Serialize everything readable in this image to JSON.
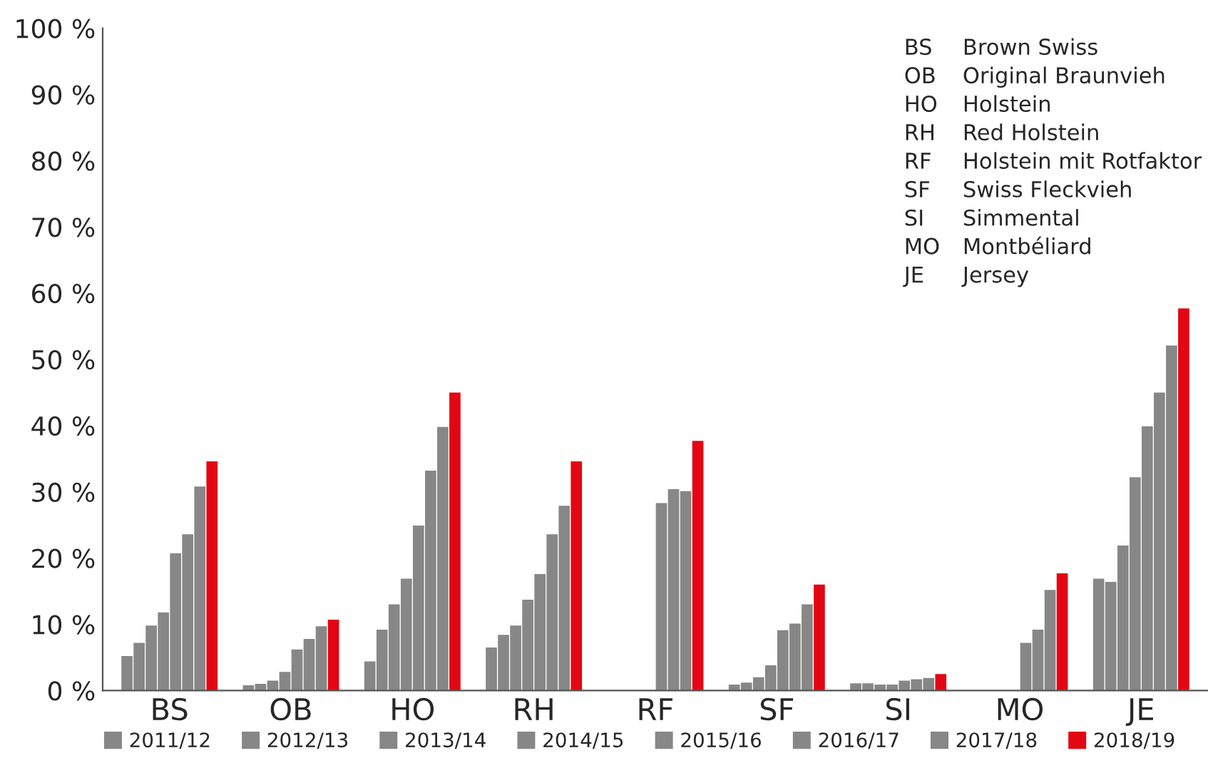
{
  "chart_data": {
    "type": "bar",
    "categories": [
      "BS",
      "OB",
      "HO",
      "RH",
      "RF",
      "SF",
      "SI",
      "MO",
      "JE"
    ],
    "series": [
      {
        "name": "2011/12",
        "color": "#878787",
        "values": [
          5.2,
          0.8,
          4.4,
          6.5,
          null,
          0.9,
          1.1,
          null,
          16.9
        ]
      },
      {
        "name": "2012/13",
        "color": "#878787",
        "values": [
          7.2,
          1.0,
          9.2,
          8.4,
          null,
          1.2,
          1.1,
          null,
          16.4
        ]
      },
      {
        "name": "2013/14",
        "color": "#878787",
        "values": [
          9.8,
          1.5,
          13.0,
          9.8,
          null,
          2.0,
          0.9,
          null,
          21.9
        ]
      },
      {
        "name": "2014/15",
        "color": "#878787",
        "values": [
          11.8,
          2.8,
          16.9,
          13.7,
          null,
          3.8,
          0.9,
          null,
          32.2
        ]
      },
      {
        "name": "2015/16",
        "color": "#878787",
        "values": [
          20.7,
          6.2,
          24.9,
          17.6,
          28.3,
          9.1,
          1.5,
          7.2,
          39.9
        ]
      },
      {
        "name": "2016/17",
        "color": "#878787",
        "values": [
          23.6,
          7.8,
          33.2,
          23.6,
          30.4,
          10.1,
          1.7,
          9.2,
          45.0
        ]
      },
      {
        "name": "2017/18",
        "color": "#878787",
        "values": [
          30.8,
          9.7,
          39.8,
          27.9,
          30.1,
          13.0,
          1.9,
          15.2,
          52.1
        ]
      },
      {
        "name": "2018/19",
        "color": "#e30613",
        "values": [
          34.6,
          10.7,
          45.0,
          34.6,
          37.7,
          16.0,
          2.5,
          17.7,
          57.7
        ]
      }
    ],
    "ylim": [
      0,
      100
    ],
    "yticks": [
      {
        "value": 0,
        "label": "0 %"
      },
      {
        "value": 10,
        "label": "10 %"
      },
      {
        "value": 20,
        "label": "20 %"
      },
      {
        "value": 30,
        "label": "30 %"
      },
      {
        "value": 40,
        "label": "40 %"
      },
      {
        "value": 50,
        "label": "50 %"
      },
      {
        "value": 60,
        "label": "60 %"
      },
      {
        "value": 70,
        "label": "70 %"
      },
      {
        "value": 80,
        "label": "80 %"
      },
      {
        "value": 90,
        "label": "90 %"
      },
      {
        "value": 100,
        "label": "100 %"
      }
    ],
    "annotations": [
      "BS\tBrown Swiss",
      "OB\tOriginal Braunvieh",
      "HO\tHolstein",
      "RH\tRed Holstein",
      "RF\tHolstein mit Rotfaktor",
      "SF\tSwiss Fleckvieh",
      "SI\tSimmental",
      "MO\tMontbéliard",
      "JE\tJersey"
    ],
    "grid": false,
    "legend": "bottom"
  }
}
